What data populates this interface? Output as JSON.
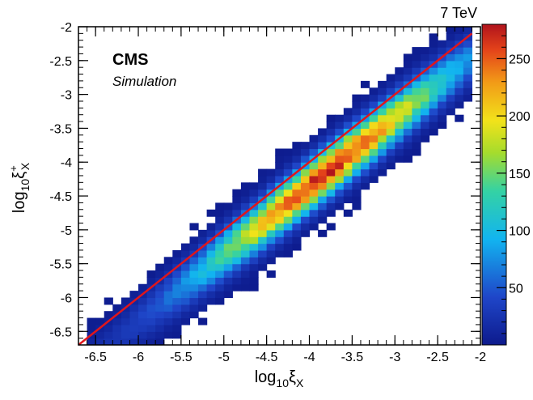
{
  "chart_data": {
    "type": "heatmap",
    "experiment_label": "CMS",
    "sublabel": "Simulation",
    "energy_label": "7 TeV",
    "xlabel": {
      "base": "log",
      "sub": "10",
      "sym": "ξ",
      "sub2": "X"
    },
    "ylabel": {
      "base": "log",
      "sub": "10",
      "sym": "ξ",
      "sup": "+",
      "sub2": "X"
    },
    "xlim": [
      -6.7,
      -2.0
    ],
    "ylim": [
      -6.7,
      -2.0
    ],
    "x_ticks": [
      "-6.5",
      "-6",
      "-5.5",
      "-5",
      "-4.5",
      "-4",
      "-3.5",
      "-3",
      "-2.5",
      "-2"
    ],
    "y_ticks": [
      "-6.5",
      "-6",
      "-5.5",
      "-5",
      "-4.5",
      "-4",
      "-3.5",
      "-3",
      "-2.5",
      "-2"
    ],
    "colorbar_ticks": [
      "50",
      "100",
      "150",
      "200",
      "250"
    ],
    "z_range": [
      0,
      280
    ],
    "diagonal_line": {
      "x": [
        -6.7,
        -2.1
      ],
      "y": [
        -6.7,
        -2.1
      ],
      "color": "#e0161b"
    },
    "distribution": {
      "ridge_offset": -0.35,
      "ridge_sigma": 0.24,
      "peak_x": -3.8,
      "peak_value": 270,
      "x_extent": [
        -6.5,
        -2.3
      ]
    },
    "bin_width": 0.1
  }
}
